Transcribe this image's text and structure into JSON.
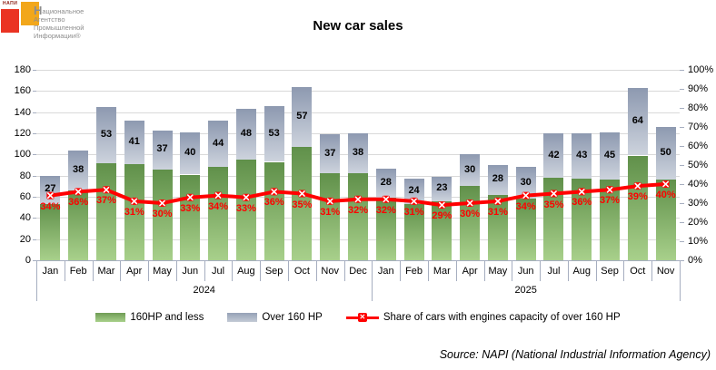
{
  "logo": {
    "mark": "НАПИ",
    "big_letter": "Н",
    "line1_rest": "ациональное",
    "line2": "Агентство",
    "line3": "Промышленной",
    "line4": "Информации®"
  },
  "source": {
    "text": "Source: NAPI (National Industrial Information Agency)"
  },
  "chart_data": {
    "type": "bar",
    "subtype": "stacked-bars-with-line",
    "title": "New car sales",
    "groups": [
      {
        "year": "2024",
        "months": [
          "Jan",
          "Feb",
          "Mar",
          "Apr",
          "May",
          "Jun",
          "Jul",
          "Aug",
          "Sep",
          "Oct",
          "Nov",
          "Dec"
        ]
      },
      {
        "year": "2025",
        "months": [
          "Jan",
          "Feb",
          "Mar",
          "Apr",
          "May",
          "Jun",
          "Jul",
          "Aug",
          "Sep",
          "Oct",
          "Nov"
        ]
      }
    ],
    "series": [
      {
        "name": "160HP and less",
        "color": "#8fbf6e",
        "values": [
          53,
          66,
          92,
          91,
          86,
          81,
          88,
          95,
          93,
          107,
          82,
          82,
          59,
          53,
          56,
          70,
          62,
          58,
          78,
          77,
          76,
          99,
          76
        ]
      },
      {
        "name": "Over 160 HP",
        "color": "#aab4c8",
        "labels_shown": true,
        "values": [
          27,
          38,
          53,
          41,
          37,
          40,
          44,
          48,
          53,
          57,
          37,
          38,
          28,
          24,
          23,
          30,
          28,
          30,
          42,
          43,
          45,
          64,
          50
        ]
      }
    ],
    "line": {
      "name": "Share of cars with engines capacity of over 160 HP",
      "color": "#ff0000",
      "marker": "x",
      "values_pct": [
        34,
        36,
        37,
        31,
        30,
        33,
        34,
        33,
        36,
        35,
        31,
        32,
        32,
        31,
        29,
        30,
        31,
        34,
        35,
        36,
        37,
        39,
        40
      ]
    },
    "left_axis": {
      "min": 0,
      "max": 180,
      "step": 20
    },
    "right_axis": {
      "min": 0,
      "max": 100,
      "step": 10,
      "suffix": "%"
    },
    "grid": "horizontal",
    "legend_position": "bottom"
  }
}
